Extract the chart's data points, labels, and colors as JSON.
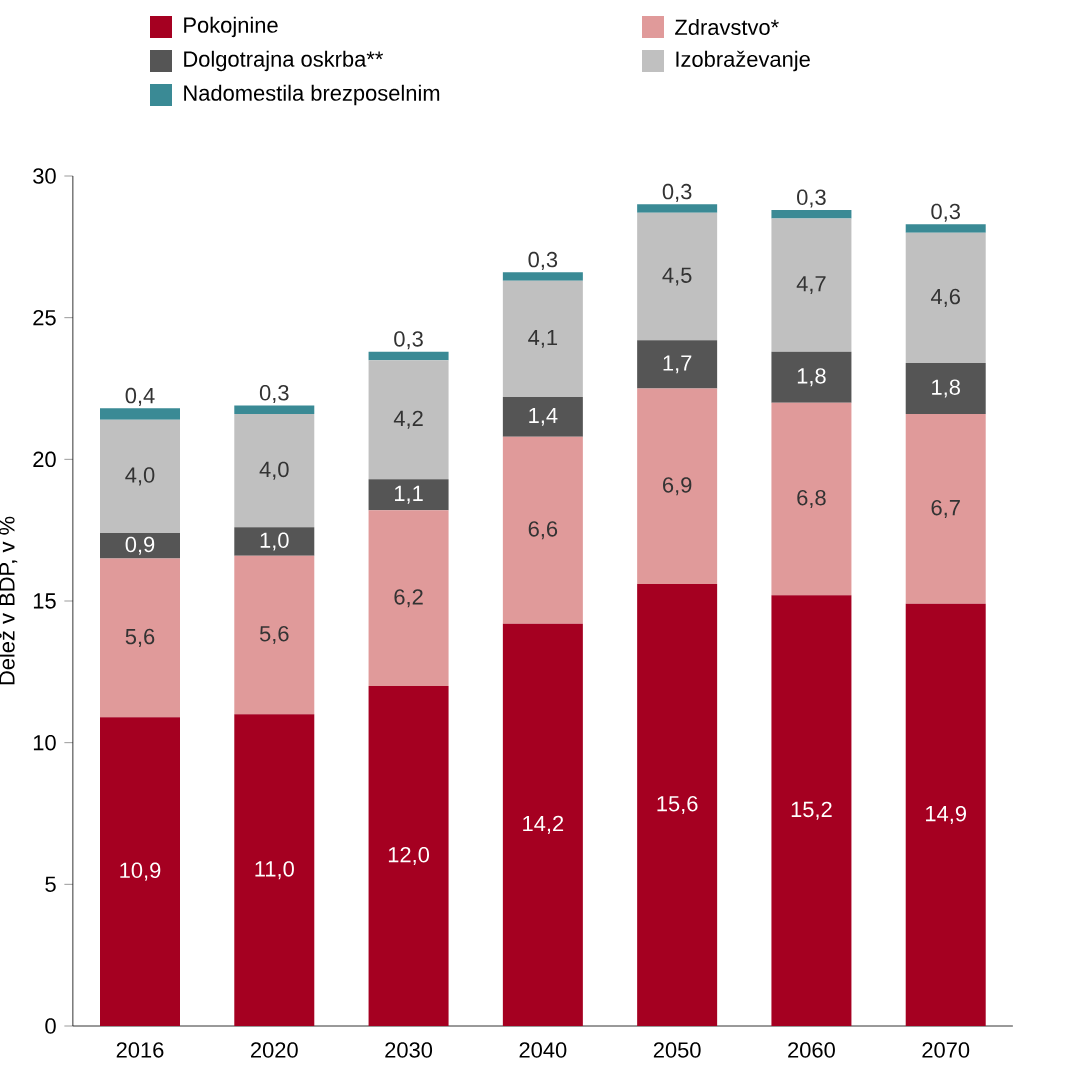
{
  "chart_data": {
    "type": "bar",
    "stacked": true,
    "ylabel": "Delež v BDP, v %",
    "categories": [
      "2016",
      "2020",
      "2030",
      "2040",
      "2050",
      "2060",
      "2070"
    ],
    "ylim": [
      0,
      30
    ],
    "yticks": [
      0,
      5,
      10,
      15,
      20,
      25,
      30
    ],
    "legend": "top",
    "grid": false,
    "series": [
      {
        "name": "Pokojnine",
        "color": "#a50021",
        "values": [
          10.9,
          11.0,
          12.0,
          14.2,
          15.6,
          15.2,
          14.9
        ],
        "value_labels": [
          "10,9",
          "11,0",
          "12,0",
          "14,2",
          "15,6",
          "15,2",
          "14,9"
        ]
      },
      {
        "name": "Zdravstvo*",
        "color": "#e09a9a",
        "values": [
          5.6,
          5.6,
          6.2,
          6.6,
          6.9,
          6.8,
          6.7
        ],
        "value_labels": [
          "5,6",
          "5,6",
          "6,2",
          "6,6",
          "6,9",
          "6,8",
          "6,7"
        ]
      },
      {
        "name": "Dolgotrajna oskrba**",
        "color": "#555555",
        "values": [
          0.9,
          1.0,
          1.1,
          1.4,
          1.7,
          1.8,
          1.8
        ],
        "value_labels": [
          "0,9",
          "1,0",
          "1,1",
          "1,4",
          "1,7",
          "1,8",
          "1,8"
        ]
      },
      {
        "name": "Izobraževanje",
        "color": "#c0c0c0",
        "values": [
          4.0,
          4.0,
          4.2,
          4.1,
          4.5,
          4.7,
          4.6
        ],
        "value_labels": [
          "4,0",
          "4,0",
          "4,2",
          "4,1",
          "4,5",
          "4,7",
          "4,6"
        ]
      },
      {
        "name": "Nadomestila brezposelnim",
        "color": "#3a8a95",
        "values": [
          0.4,
          0.3,
          0.3,
          0.3,
          0.3,
          0.3,
          0.3
        ],
        "value_labels": [
          "0,4",
          "0,3",
          "0,3",
          "0,3",
          "0,3",
          "0,3",
          "0,3"
        ]
      }
    ]
  }
}
